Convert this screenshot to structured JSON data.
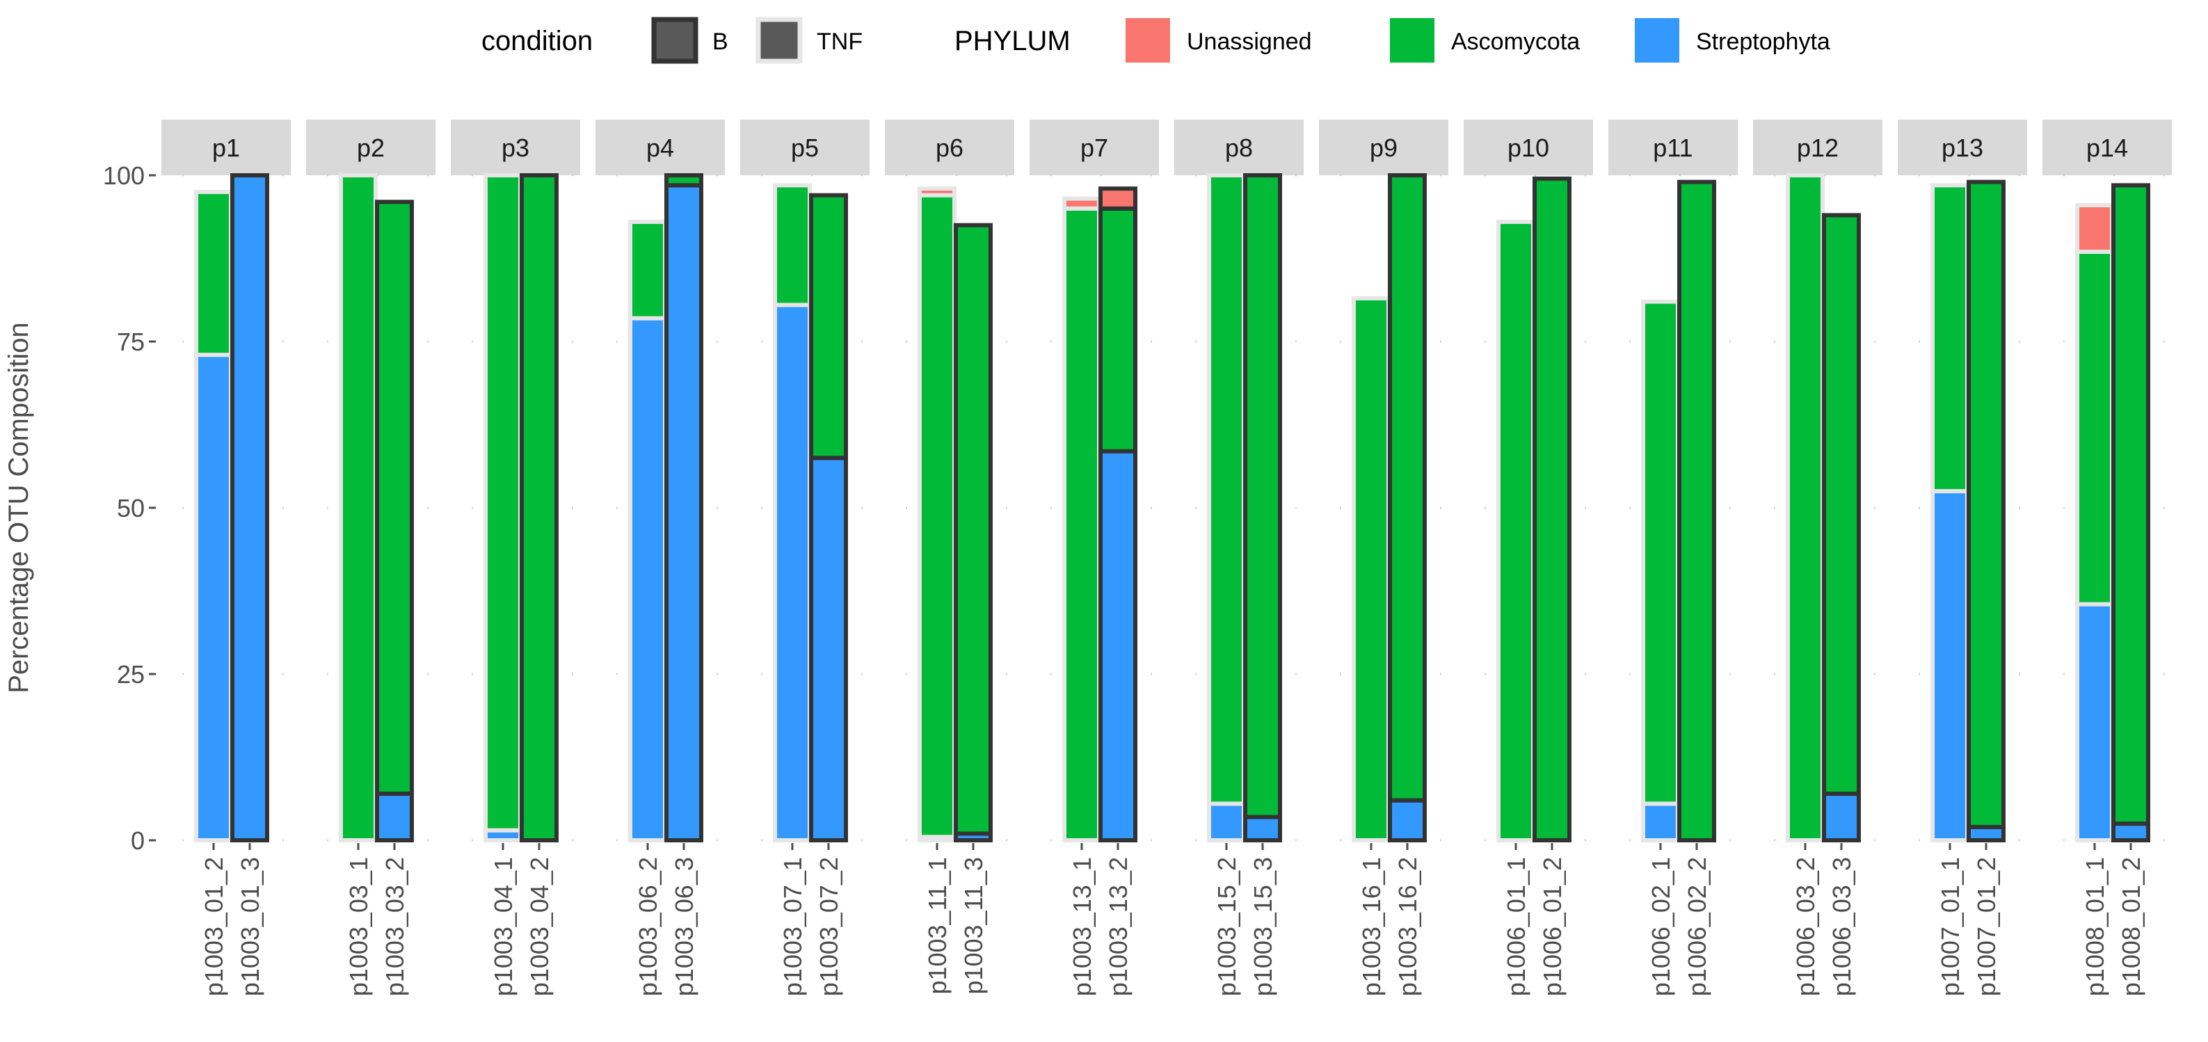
{
  "chart_data": {
    "type": "bar",
    "stacked": true,
    "faceted": true,
    "ylabel": "Percentage OTU Composition",
    "yticks": [
      0,
      25,
      50,
      75,
      100
    ],
    "ylim": [
      0,
      100
    ],
    "legend": {
      "position": "top",
      "condition_title": "condition",
      "condition_items": [
        {
          "label": "B",
          "outline": "#333333"
        },
        {
          "label": "TNF",
          "outline": "#e6e6e6"
        }
      ],
      "phylum_title": "PHYLUM",
      "phylum_items": [
        {
          "label": "Unassigned",
          "color": "#F8766D"
        },
        {
          "label": "Ascomycota",
          "color": "#00BA38"
        },
        {
          "label": "Streptophyta",
          "color": "#3399FF"
        }
      ]
    },
    "colors": {
      "Unassigned": "#F8766D",
      "Ascomycota": "#00BA38",
      "Streptophyta": "#3399FF"
    },
    "outline_colors": {
      "B": "#333333",
      "TNF": "#e6e6e6"
    },
    "facets": [
      {
        "label": "p1",
        "samples": [
          {
            "name": "p1003_01_2",
            "condition": "TNF",
            "Streptophyta": 73,
            "Ascomycota": 24.5,
            "Unassigned": 0
          },
          {
            "name": "p1003_01_3",
            "condition": "B",
            "Streptophyta": 100,
            "Ascomycota": 0,
            "Unassigned": 0
          }
        ]
      },
      {
        "label": "p2",
        "samples": [
          {
            "name": "p1003_03_1",
            "condition": "TNF",
            "Streptophyta": 0,
            "Ascomycota": 100,
            "Unassigned": 0
          },
          {
            "name": "p1003_03_2",
            "condition": "B",
            "Streptophyta": 7,
            "Ascomycota": 89,
            "Unassigned": 0
          }
        ]
      },
      {
        "label": "p3",
        "samples": [
          {
            "name": "p1003_04_1",
            "condition": "TNF",
            "Streptophyta": 1.5,
            "Ascomycota": 98.5,
            "Unassigned": 0
          },
          {
            "name": "p1003_04_2",
            "condition": "B",
            "Streptophyta": 0,
            "Ascomycota": 100,
            "Unassigned": 0
          }
        ]
      },
      {
        "label": "p4",
        "samples": [
          {
            "name": "p1003_06_2",
            "condition": "TNF",
            "Streptophyta": 78.5,
            "Ascomycota": 14.5,
            "Unassigned": 0
          },
          {
            "name": "p1003_06_3",
            "condition": "B",
            "Streptophyta": 98.5,
            "Ascomycota": 1.5,
            "Unassigned": 0
          }
        ]
      },
      {
        "label": "p5",
        "samples": [
          {
            "name": "p1003_07_1",
            "condition": "TNF",
            "Streptophyta": 80.5,
            "Ascomycota": 18,
            "Unassigned": 0
          },
          {
            "name": "p1003_07_2",
            "condition": "B",
            "Streptophyta": 57.5,
            "Ascomycota": 39.5,
            "Unassigned": 0
          }
        ]
      },
      {
        "label": "p6",
        "samples": [
          {
            "name": "p1003_11_1",
            "condition": "TNF",
            "Streptophyta": 0.5,
            "Ascomycota": 96.5,
            "Unassigned": 1
          },
          {
            "name": "p1003_11_3",
            "condition": "B",
            "Streptophyta": 1,
            "Ascomycota": 91.5,
            "Unassigned": 0
          }
        ]
      },
      {
        "label": "p7",
        "samples": [
          {
            "name": "p1003_13_1",
            "condition": "TNF",
            "Streptophyta": 0,
            "Ascomycota": 95,
            "Unassigned": 1.5
          },
          {
            "name": "p1003_13_2",
            "condition": "B",
            "Streptophyta": 58.5,
            "Ascomycota": 36.5,
            "Unassigned": 3
          }
        ]
      },
      {
        "label": "p8",
        "samples": [
          {
            "name": "p1003_15_2",
            "condition": "TNF",
            "Streptophyta": 5.5,
            "Ascomycota": 94.5,
            "Unassigned": 0
          },
          {
            "name": "p1003_15_3",
            "condition": "B",
            "Streptophyta": 3.5,
            "Ascomycota": 96.5,
            "Unassigned": 0
          }
        ]
      },
      {
        "label": "p9",
        "samples": [
          {
            "name": "p1003_16_1",
            "condition": "TNF",
            "Streptophyta": 0,
            "Ascomycota": 81.5,
            "Unassigned": 0
          },
          {
            "name": "p1003_16_2",
            "condition": "B",
            "Streptophyta": 6,
            "Ascomycota": 94,
            "Unassigned": 0
          }
        ]
      },
      {
        "label": "p10",
        "samples": [
          {
            "name": "p1006_01_1",
            "condition": "TNF",
            "Streptophyta": 0,
            "Ascomycota": 93,
            "Unassigned": 0
          },
          {
            "name": "p1006_01_2",
            "condition": "B",
            "Streptophyta": 0,
            "Ascomycota": 99.5,
            "Unassigned": 0
          }
        ]
      },
      {
        "label": "p11",
        "samples": [
          {
            "name": "p1006_02_1",
            "condition": "TNF",
            "Streptophyta": 5.5,
            "Ascomycota": 75.5,
            "Unassigned": 0
          },
          {
            "name": "p1006_02_2",
            "condition": "B",
            "Streptophyta": 0,
            "Ascomycota": 99,
            "Unassigned": 0
          }
        ]
      },
      {
        "label": "p12",
        "samples": [
          {
            "name": "p1006_03_2",
            "condition": "TNF",
            "Streptophyta": 0,
            "Ascomycota": 100,
            "Unassigned": 0
          },
          {
            "name": "p1006_03_3",
            "condition": "B",
            "Streptophyta": 7,
            "Ascomycota": 87,
            "Unassigned": 0
          }
        ]
      },
      {
        "label": "p13",
        "samples": [
          {
            "name": "p1007_01_1",
            "condition": "TNF",
            "Streptophyta": 52.5,
            "Ascomycota": 46,
            "Unassigned": 0
          },
          {
            "name": "p1007_01_2",
            "condition": "B",
            "Streptophyta": 2,
            "Ascomycota": 97,
            "Unassigned": 0
          }
        ]
      },
      {
        "label": "p14",
        "samples": [
          {
            "name": "p1008_01_1",
            "condition": "TNF",
            "Streptophyta": 35.5,
            "Ascomycota": 53,
            "Unassigned": 7
          },
          {
            "name": "p1008_01_2",
            "condition": "B",
            "Streptophyta": 2.5,
            "Ascomycota": 96,
            "Unassigned": 0
          }
        ]
      }
    ]
  }
}
